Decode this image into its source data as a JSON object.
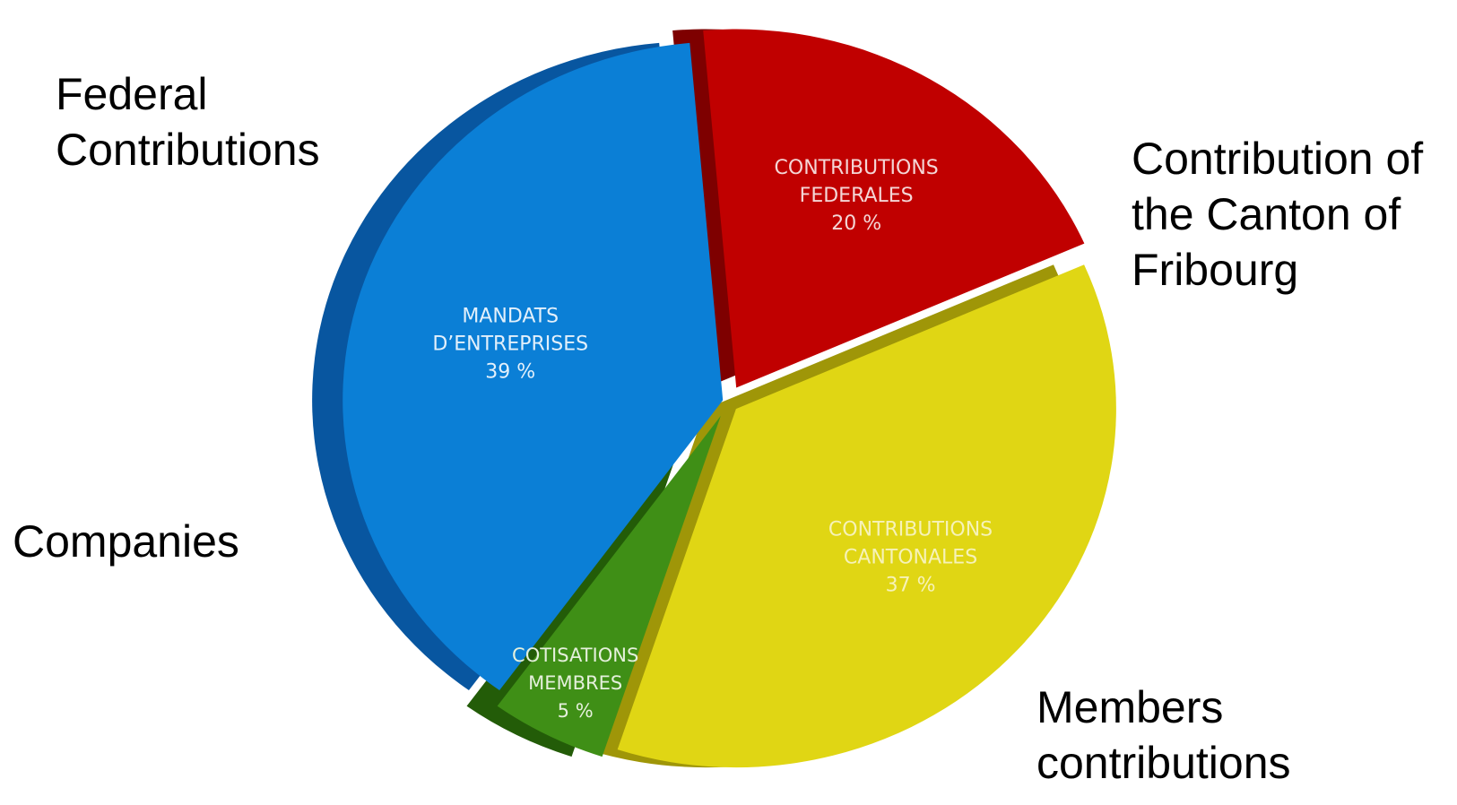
{
  "chart_data": {
    "type": "pie",
    "title": "",
    "slices": [
      {
        "key": "federal",
        "inner_label": [
          "CONTRIBUTIONS",
          "FEDERALES"
        ],
        "percent_label": "20 %",
        "value": 20,
        "outer_label": [
          "Federal",
          "Contributions"
        ],
        "color": "#c00000",
        "side_color": "#7e0000"
      },
      {
        "key": "canton",
        "inner_label": [
          "CONTRIBUTIONS",
          "CANTONALES"
        ],
        "percent_label": "37 %",
        "value": 37,
        "outer_label": [
          "Contribution of",
          "the Canton of",
          "Fribourg"
        ],
        "color": "#e0d614",
        "side_color": "#9f9608"
      },
      {
        "key": "members",
        "inner_label": [
          "COTISATIONS",
          "MEMBRES"
        ],
        "percent_label": "5 %",
        "value": 5,
        "outer_label": [
          "Members",
          "contributions"
        ],
        "color": "#3f8f16",
        "side_color": "#235c08"
      },
      {
        "key": "companies",
        "inner_label": [
          "MANDATS",
          "D’ENTREPRISES"
        ],
        "percent_label": "39 %",
        "value": 39,
        "outer_label": [
          "Companies"
        ],
        "color": "#0b7fd6",
        "side_color": "#0856a0"
      }
    ],
    "legend": "none"
  }
}
